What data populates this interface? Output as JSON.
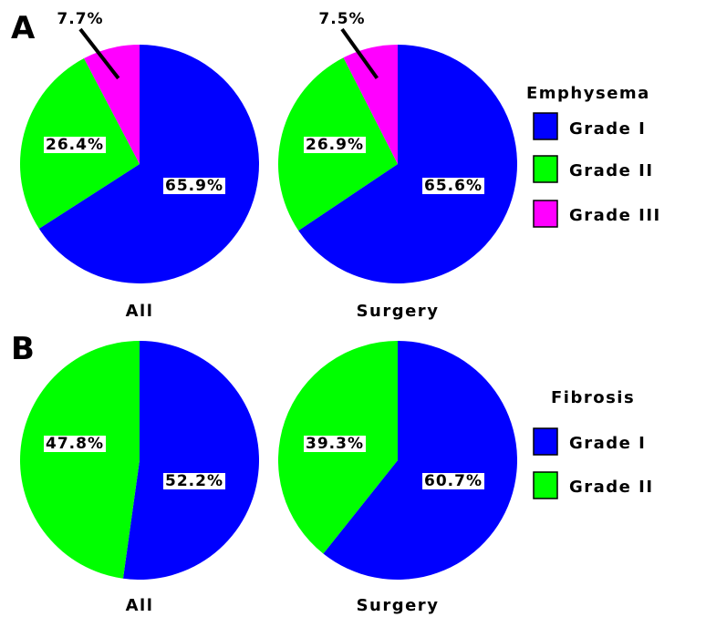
{
  "panels": [
    {
      "letter": "A",
      "legend": {
        "title": "Emphysema",
        "entries": [
          {
            "label": "Grade I",
            "color": "#0000ff"
          },
          {
            "label": "Grade II",
            "color": "#00ff00"
          },
          {
            "label": "Grade III",
            "color": "#ff00ff"
          }
        ]
      }
    },
    {
      "letter": "B",
      "legend": {
        "title": "Fibrosis",
        "entries": [
          {
            "label": "Grade I",
            "color": "#0000ff"
          },
          {
            "label": "Grade II",
            "color": "#00ff00"
          }
        ]
      }
    }
  ],
  "chart_data": [
    {
      "type": "pie",
      "panel": "A",
      "title": "All",
      "legend_title": "Emphysema",
      "categories": [
        "Grade I",
        "Grade II",
        "Grade III"
      ],
      "values": [
        65.9,
        26.4,
        7.7
      ],
      "labels": [
        "65.9%",
        "26.4%",
        "7.7%"
      ],
      "colors": [
        "#0000ff",
        "#00ff00",
        "#ff00ff"
      ]
    },
    {
      "type": "pie",
      "panel": "A",
      "title": "Surgery",
      "legend_title": "Emphysema",
      "categories": [
        "Grade I",
        "Grade II",
        "Grade III"
      ],
      "values": [
        65.6,
        26.9,
        7.5
      ],
      "labels": [
        "65.6%",
        "26.9%",
        "7.5%"
      ],
      "colors": [
        "#0000ff",
        "#00ff00",
        "#ff00ff"
      ]
    },
    {
      "type": "pie",
      "panel": "B",
      "title": "All",
      "legend_title": "Fibrosis",
      "categories": [
        "Grade I",
        "Grade II"
      ],
      "values": [
        52.2,
        47.8
      ],
      "labels": [
        "52.2%",
        "47.8%"
      ],
      "colors": [
        "#0000ff",
        "#00ff00"
      ]
    },
    {
      "type": "pie",
      "panel": "B",
      "title": "Surgery",
      "legend_title": "Fibrosis",
      "categories": [
        "Grade I",
        "Grade II"
      ],
      "values": [
        60.7,
        39.3
      ],
      "labels": [
        "60.7%",
        "39.3%"
      ],
      "colors": [
        "#0000ff",
        "#00ff00"
      ]
    }
  ]
}
